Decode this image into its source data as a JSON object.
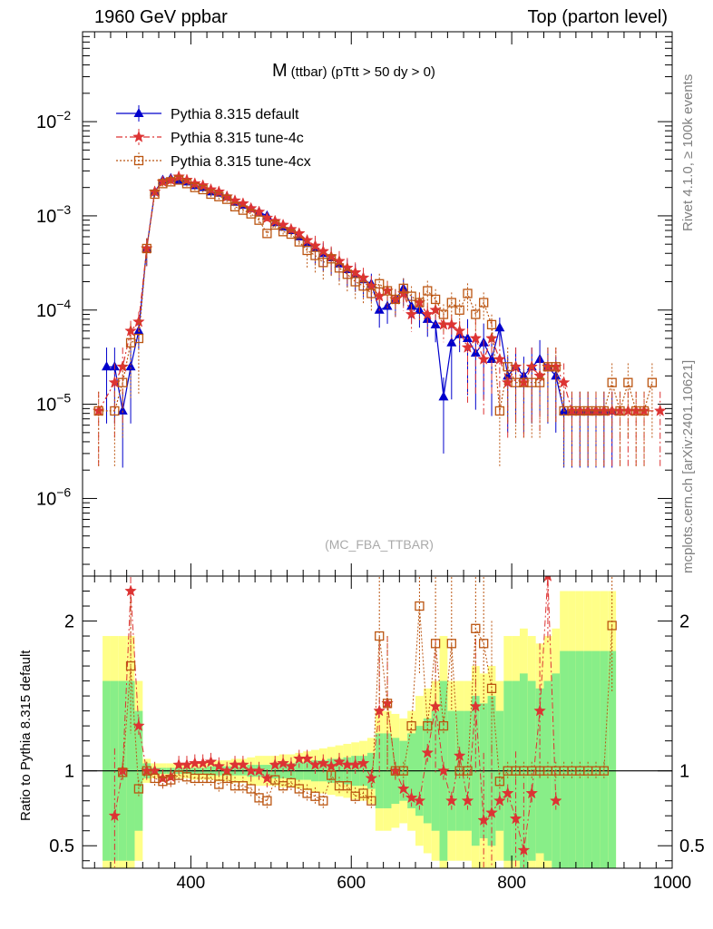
{
  "header": {
    "left": "1960 GeV ppbar",
    "right": "Top (parton level)"
  },
  "side_labels": {
    "rivet": "Rivet 4.1.0, ≥ 100k events",
    "mcplots": "mcplots.cern.ch [arXiv:2401.10621]"
  },
  "colors": {
    "default": "#0000cc",
    "tune4c": "#dd3333",
    "tune4cx": "#bb5511",
    "band_yellow": "#ffff88",
    "band_green": "#88ee88"
  },
  "chart_data": [
    {
      "type": "line",
      "panel": "main",
      "title_main": "M",
      "title_sub": "(ttbar) (pTtt > 50 dy > 0)",
      "watermark": "(MC_FBA_TTBAR)",
      "yscale": "log",
      "xlim": [
        265,
        1000
      ],
      "ylim": [
        1.5e-07,
        0.09
      ],
      "ytick_labels": [
        "10^-2",
        "10^-3",
        "10^-4",
        "10^-5",
        "10^-6"
      ],
      "ytick_values": [
        0.01,
        0.001,
        0.0001,
        1e-05,
        1e-06
      ],
      "legend_position": "top-left",
      "series": [
        {
          "name": "Pythia 8.315 default",
          "marker": "triangle",
          "x": [
            295,
            305,
            315,
            325,
            335,
            345,
            355,
            365,
            375,
            385,
            395,
            405,
            415,
            425,
            435,
            445,
            455,
            465,
            475,
            485,
            495,
            505,
            515,
            525,
            535,
            545,
            555,
            565,
            575,
            585,
            595,
            605,
            615,
            625,
            635,
            645,
            655,
            665,
            675,
            685,
            695,
            705,
            715,
            725,
            735,
            745,
            755,
            765,
            775,
            785,
            795,
            805,
            815,
            825,
            835,
            845,
            855,
            865,
            875,
            885,
            895,
            905,
            915,
            925
          ],
          "values": [
            2.5e-05,
            2.5e-05,
            8.5e-06,
            2.5e-05,
            6e-05,
            0.00045,
            0.0018,
            0.0024,
            0.0025,
            0.0024,
            0.0023,
            0.0021,
            0.002,
            0.0018,
            0.00175,
            0.0016,
            0.0014,
            0.0013,
            0.0012,
            0.0011,
            0.001,
            0.00085,
            0.00076,
            0.0007,
            0.0006,
            0.00051,
            0.00046,
            0.0004,
            0.00036,
            0.00031,
            0.00027,
            0.00024,
            0.00021,
            0.00019,
            0.0001,
            0.00011,
            0.00013,
            0.00017,
            0.00011,
            0.0001,
            8e-05,
            7e-05,
            1.2e-05,
            4.5e-05,
            5.5e-05,
            5e-05,
            3.5e-05,
            4.5e-05,
            3e-05,
            6.5e-05,
            2e-05,
            2.5e-05,
            2e-05,
            2.5e-05,
            3e-05,
            2.5e-05,
            2e-05,
            8.5e-06,
            8.5e-06,
            8.5e-06,
            8.5e-06,
            8.5e-06,
            8.5e-06,
            8.5e-06
          ]
        },
        {
          "name": "Pythia 8.315 tune-4c",
          "marker": "star",
          "x": [
            285,
            305,
            315,
            325,
            335,
            345,
            355,
            365,
            375,
            385,
            395,
            405,
            415,
            425,
            435,
            445,
            455,
            465,
            475,
            485,
            495,
            505,
            515,
            525,
            535,
            545,
            555,
            565,
            575,
            585,
            595,
            605,
            615,
            625,
            635,
            645,
            655,
            665,
            675,
            685,
            695,
            705,
            715,
            725,
            735,
            745,
            755,
            765,
            775,
            785,
            795,
            805,
            815,
            825,
            835,
            845,
            855,
            865,
            875,
            885,
            895,
            905,
            915,
            925,
            935,
            945,
            955,
            965,
            985
          ],
          "values": [
            8.5e-06,
            1.7e-05,
            2.5e-05,
            6e-05,
            7.5e-05,
            0.00045,
            0.0018,
            0.0023,
            0.0024,
            0.0026,
            0.0024,
            0.0022,
            0.0021,
            0.0019,
            0.0018,
            0.0016,
            0.00145,
            0.00135,
            0.0012,
            0.0011,
            0.00095,
            0.00088,
            0.0008,
            0.00072,
            0.00065,
            0.00055,
            0.00048,
            0.00042,
            0.00037,
            0.00033,
            0.00028,
            0.00025,
            0.00022,
            0.00018,
            0.00014,
            0.00016,
            0.00013,
            0.00015,
            9e-05,
            0.00012,
            9e-05,
            0.0001,
            7e-05,
            7e-05,
            6e-05,
            4e-05,
            5e-05,
            3e-05,
            5e-05,
            3e-05,
            1.7e-05,
            2.5e-05,
            1.7e-05,
            2.5e-05,
            2e-05,
            2.5e-05,
            2.5e-05,
            1.7e-05,
            8.5e-06,
            8.5e-06,
            8.5e-06,
            8.5e-06,
            8.5e-06,
            8.5e-06,
            8.5e-06,
            8.5e-06,
            8.5e-06,
            8.5e-06,
            8.5e-06
          ]
        },
        {
          "name": "Pythia 8.315 tune-4cx",
          "marker": "square",
          "x": [
            285,
            305,
            315,
            325,
            335,
            345,
            355,
            365,
            375,
            385,
            395,
            405,
            415,
            425,
            435,
            445,
            455,
            465,
            475,
            485,
            495,
            505,
            515,
            525,
            535,
            545,
            555,
            565,
            575,
            585,
            595,
            605,
            615,
            625,
            635,
            645,
            655,
            665,
            675,
            685,
            695,
            705,
            715,
            725,
            735,
            745,
            755,
            765,
            775,
            785,
            795,
            805,
            815,
            825,
            835,
            845,
            855,
            865,
            875,
            885,
            895,
            905,
            915,
            925,
            935,
            945,
            955,
            965,
            975
          ],
          "values": [
            8.5e-06,
            8.5e-06,
            1.7e-05,
            4.5e-05,
            5e-05,
            0.00045,
            0.0017,
            0.0022,
            0.0023,
            0.0024,
            0.0022,
            0.002,
            0.0019,
            0.0017,
            0.0016,
            0.0015,
            0.00125,
            0.00115,
            0.00105,
            0.0009,
            0.00065,
            0.0008,
            0.00068,
            0.00064,
            0.00053,
            0.00043,
            0.00038,
            0.00032,
            0.00035,
            0.00028,
            0.00024,
            0.0002,
            0.00018,
            0.00015,
            0.00019,
            0.00016,
            0.00013,
            0.00017,
            0.00014,
            0.00012,
            0.00016,
            0.00013,
            9e-05,
            0.00012,
            0.0001,
            0.00015,
            9e-05,
            0.00012,
            7e-05,
            8.5e-06,
            2.5e-05,
            1.7e-05,
            1.7e-05,
            1.7e-05,
            1.7e-05,
            2.5e-05,
            2.5e-05,
            8.5e-06,
            8.5e-06,
            8.5e-06,
            8.5e-06,
            8.5e-06,
            8.5e-06,
            1.7e-05,
            8.5e-06,
            1.7e-05,
            8.5e-06,
            8.5e-06,
            1.7e-05
          ]
        }
      ]
    },
    {
      "type": "line",
      "panel": "ratio",
      "ylabel": "Ratio to Pythia 8.315 default",
      "xlabel": "",
      "xlim": [
        265,
        1000
      ],
      "ylim": [
        0.35,
        2.3
      ],
      "xtick_labels": [
        "400",
        "600",
        "800",
        "1000"
      ],
      "ytick_labels": [
        "0.5",
        "1",
        "2"
      ],
      "reference_line": 1,
      "uncertainty_bands": {
        "x": [
          295,
          305,
          315,
          325,
          335,
          345,
          355,
          365,
          375,
          385,
          395,
          405,
          415,
          425,
          435,
          445,
          455,
          465,
          475,
          485,
          495,
          505,
          515,
          525,
          535,
          545,
          555,
          565,
          575,
          585,
          595,
          605,
          615,
          625,
          635,
          645,
          655,
          665,
          675,
          685,
          695,
          705,
          715,
          725,
          735,
          745,
          755,
          765,
          775,
          785,
          795,
          805,
          815,
          825,
          835,
          845,
          855,
          865,
          875,
          885,
          895,
          905,
          915,
          925
        ],
        "stat_half_width": [
          0.6,
          0.6,
          0.6,
          0.6,
          0.4,
          0.05,
          0.02,
          0.02,
          0.02,
          0.02,
          0.02,
          0.02,
          0.02,
          0.03,
          0.03,
          0.03,
          0.03,
          0.03,
          0.04,
          0.04,
          0.04,
          0.05,
          0.05,
          0.05,
          0.06,
          0.06,
          0.07,
          0.07,
          0.08,
          0.08,
          0.09,
          0.1,
          0.1,
          0.12,
          0.25,
          0.25,
          0.22,
          0.2,
          0.25,
          0.3,
          0.35,
          0.4,
          0.6,
          0.4,
          0.4,
          0.4,
          0.5,
          0.45,
          0.5,
          0.4,
          0.6,
          0.6,
          0.65,
          0.6,
          0.55,
          0.6,
          0.65,
          0.8,
          0.8,
          0.8,
          0.8,
          0.8,
          0.8,
          0.8
        ],
        "syst_half_width": [
          0.9,
          0.9,
          0.9,
          0.9,
          0.6,
          0.08,
          0.05,
          0.05,
          0.05,
          0.05,
          0.05,
          0.06,
          0.06,
          0.06,
          0.07,
          0.07,
          0.08,
          0.08,
          0.09,
          0.1,
          0.1,
          0.1,
          0.11,
          0.11,
          0.12,
          0.13,
          0.14,
          0.15,
          0.16,
          0.17,
          0.18,
          0.19,
          0.2,
          0.22,
          0.4,
          0.4,
          0.38,
          0.35,
          0.4,
          0.5,
          0.55,
          0.6,
          0.9,
          0.6,
          0.6,
          0.6,
          0.7,
          0.65,
          0.7,
          0.6,
          0.9,
          0.9,
          0.95,
          0.9,
          0.85,
          0.9,
          0.95,
          1.2,
          1.2,
          1.2,
          1.2,
          1.2,
          1.2,
          1.2
        ]
      },
      "series": [
        {
          "name": "Pythia 8.315 tune-4c",
          "x": [
            305,
            315,
            325,
            335,
            345,
            355,
            365,
            375,
            385,
            395,
            405,
            415,
            425,
            435,
            445,
            455,
            465,
            475,
            485,
            495,
            505,
            515,
            525,
            535,
            545,
            555,
            565,
            575,
            585,
            595,
            605,
            615,
            625,
            635,
            645,
            655,
            665,
            675,
            685,
            695,
            705,
            715,
            725,
            735,
            745,
            755,
            765,
            775,
            785,
            795,
            805,
            815,
            825,
            835,
            845,
            855
          ],
          "values": [
            0.7,
            1.0,
            2.2,
            1.3,
            1.0,
            1.0,
            0.95,
            0.96,
            1.04,
            1.04,
            1.05,
            1.05,
            1.06,
            1.03,
            1.0,
            1.04,
            1.04,
            1.0,
            1.0,
            0.95,
            1.04,
            1.05,
            1.03,
            1.08,
            1.08,
            1.04,
            1.05,
            1.03,
            1.06,
            1.04,
            1.04,
            1.05,
            0.95,
            1.4,
            1.45,
            1.0,
            0.88,
            0.82,
            0.8,
            1.12,
            1.43,
            1.0,
            0.8,
            1.1,
            0.8,
            1.43,
            0.67,
            0.72,
            0.8,
            0.85,
            0.68,
            0.47,
            0.85,
            1.4,
            2.3,
            0.8
          ]
        },
        {
          "name": "Pythia 8.315 tune-4cx",
          "x": [
            315,
            325,
            335,
            345,
            355,
            365,
            375,
            385,
            395,
            405,
            415,
            425,
            435,
            445,
            455,
            465,
            475,
            485,
            495,
            505,
            515,
            525,
            535,
            545,
            555,
            565,
            575,
            585,
            595,
            605,
            615,
            625,
            635,
            645,
            655,
            665,
            675,
            685,
            695,
            705,
            715,
            725,
            735,
            745,
            755,
            765,
            775,
            785,
            795,
            805,
            815,
            825,
            835,
            845,
            855,
            865,
            875,
            885,
            895,
            905,
            915,
            925
          ],
          "values": [
            0.99,
            1.7,
            0.88,
            1.0,
            0.95,
            0.93,
            0.94,
            0.97,
            0.96,
            0.95,
            0.95,
            0.95,
            0.91,
            0.95,
            0.9,
            0.9,
            0.88,
            0.82,
            0.8,
            0.94,
            0.9,
            0.92,
            0.88,
            0.85,
            0.83,
            0.8,
            0.97,
            0.9,
            0.9,
            0.83,
            0.85,
            0.8,
            1.9,
            1.45,
            1.0,
            1.0,
            1.3,
            2.1,
            1.3,
            1.85,
            1.3,
            1.85,
            1.0,
            1.0,
            1.95,
            1.85,
            1.55,
            0.93,
            1.0,
            1.0,
            1.0,
            1.0,
            1.0,
            1.0,
            1.0,
            1.0,
            1.0,
            1.0,
            1.0,
            1.0,
            1.0,
            1.97
          ]
        }
      ]
    }
  ]
}
